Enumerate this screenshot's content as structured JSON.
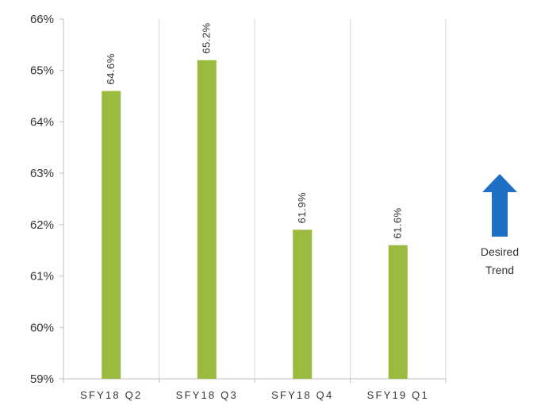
{
  "chart_data": {
    "type": "bar",
    "categories": [
      "SFY18 Q2",
      "SFY18 Q3",
      "SFY18 Q4",
      "SFY19 Q1"
    ],
    "values": [
      64.6,
      65.2,
      61.9,
      61.6
    ],
    "data_labels": [
      "64.6%",
      "65.2%",
      "61.9%",
      "61.6%"
    ],
    "ylim": [
      59,
      66
    ],
    "yticks": [
      59,
      60,
      61,
      62,
      63,
      64,
      65,
      66
    ],
    "ytick_labels": [
      "59%",
      "60%",
      "61%",
      "62%",
      "63%",
      "64%",
      "65%",
      "66%"
    ],
    "grid": "vertical",
    "bar_color": "#9BBB40",
    "grid_color": "#D9D9D9"
  },
  "annotation": {
    "label_line1": "Desired",
    "label_line2": "Trend",
    "arrow_color": "#1F6FC5",
    "direction": "up"
  }
}
